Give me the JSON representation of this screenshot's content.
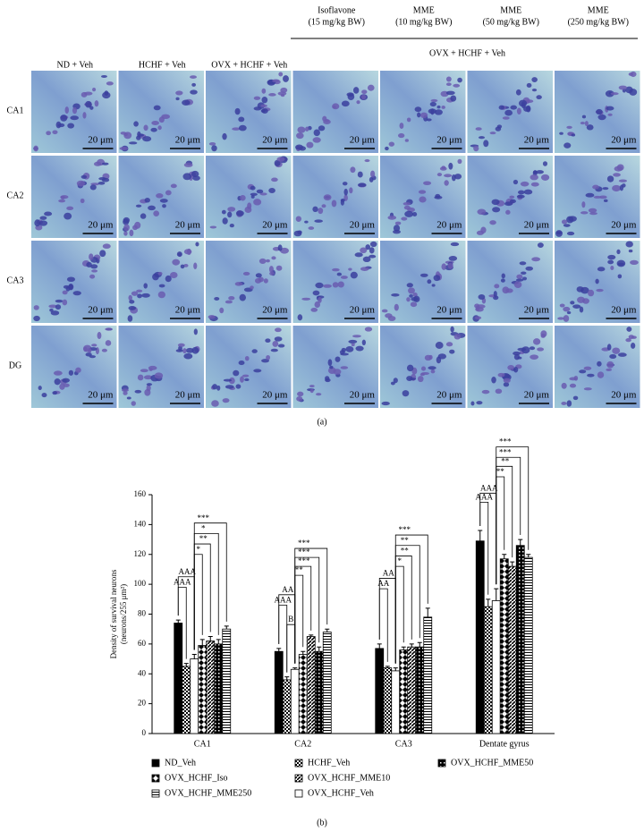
{
  "figure": {
    "panels": [
      "(a)",
      "(b)"
    ],
    "treatments": [
      [
        "Isoflavone",
        "(15 mg/kg BW)"
      ],
      [
        "MME",
        "(10 mg/kg BW)"
      ],
      [
        "MME",
        "(50 mg/kg BW)"
      ],
      [
        "MME",
        "(250 mg/kg BW)"
      ]
    ],
    "group_label": "OVX + HCHF + Veh",
    "column_labels": [
      "ND + Veh",
      "HCHF + Veh",
      "OVX + HCHF + Veh"
    ],
    "rows": [
      "CA1",
      "CA2",
      "CA3",
      "DG"
    ],
    "scale_bar": "20 μm"
  },
  "chart_data": {
    "type": "bar",
    "ylabel": [
      "Density of survival neurons",
      "(neurons/255 μm²)"
    ],
    "categories": [
      "CA1",
      "CA2",
      "CA3",
      "Dentate gyrus"
    ],
    "ylim": [
      0,
      160
    ],
    "yticks": [
      0,
      20,
      40,
      60,
      80,
      100,
      120,
      140,
      160
    ],
    "series": [
      {
        "name": "ND_Veh",
        "color": "#000000",
        "pattern": "solid",
        "values": [
          74,
          55,
          57,
          129
        ],
        "errors": [
          2,
          2,
          3,
          7
        ]
      },
      {
        "name": "HCHF_Veh",
        "color": "#000000",
        "pattern": "checker",
        "values": [
          45,
          36,
          44,
          85
        ],
        "errors": [
          2,
          2,
          1,
          5
        ]
      },
      {
        "name": "OVX_HCHF_Veh",
        "color": "#000000",
        "pattern": "none",
        "values": [
          50,
          43,
          42,
          89
        ],
        "errors": [
          3,
          1,
          2,
          8
        ]
      },
      {
        "name": "OVX_HCHF_Iso",
        "color": "#000000",
        "pattern": "diamond",
        "values": [
          59,
          53,
          56,
          117
        ],
        "errors": [
          4,
          2,
          2,
          3
        ]
      },
      {
        "name": "OVX_HCHF_MME10",
        "color": "#000000",
        "pattern": "diagonal",
        "values": [
          62,
          65,
          58,
          112
        ],
        "errors": [
          3,
          1,
          2,
          3
        ]
      },
      {
        "name": "OVX_HCHF_MME50",
        "color": "#000000",
        "pattern": "dark-checker",
        "values": [
          60,
          55,
          58,
          126
        ],
        "errors": [
          3,
          3,
          3,
          4
        ]
      },
      {
        "name": "OVX_HCHF_MME250",
        "color": "#000000",
        "pattern": "horizontal",
        "values": [
          70,
          68,
          78,
          118
        ],
        "errors": [
          2,
          2,
          6,
          2
        ]
      }
    ],
    "annotations": [
      "AAA",
      "AAA",
      "*",
      "**",
      "*",
      "***",
      "AAA",
      "AA",
      "B",
      "**",
      "***",
      "***",
      "***",
      "AA",
      "AA",
      "*",
      "**",
      "**",
      "***",
      "AAA",
      "AAA",
      "**",
      "**",
      "***",
      "***"
    ]
  }
}
